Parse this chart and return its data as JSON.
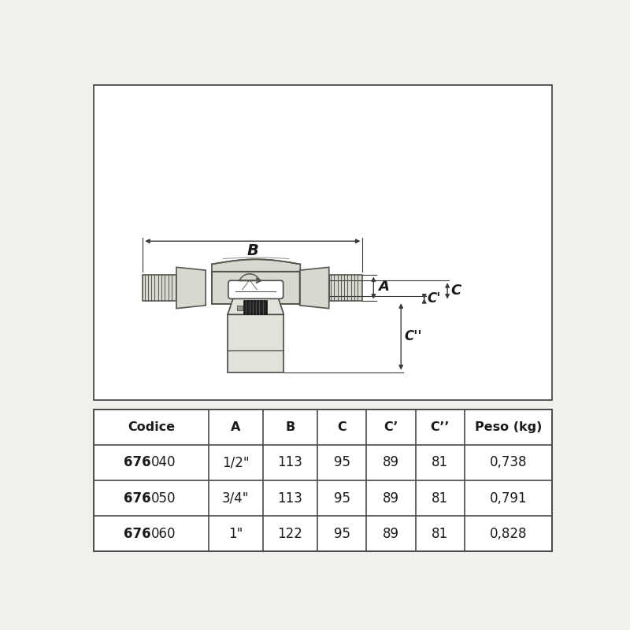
{
  "bg_color": "#f0f0ec",
  "line_color": "#4a4a4a",
  "dim_color": "#3a3a3a",
  "valve_fill": "#d8d8d0",
  "valve_edge": "#555550",
  "black_fill": "#222222",
  "actuator_fill": "#e2e2da",
  "white_fill": "#ffffff",
  "text_color": "#1a1a1a",
  "table_headers": [
    "Codice",
    "A",
    "B",
    "C",
    "C’",
    "C’’",
    "Peso (kg)"
  ],
  "table_rows": [
    [
      "676040",
      "1/2\"",
      "113",
      "95",
      "89",
      "81",
      "0,738"
    ],
    [
      "676050",
      "3/4\"",
      "113",
      "95",
      "89",
      "81",
      "0,791"
    ],
    [
      "676060",
      "1\"",
      "122",
      "95",
      "89",
      "81",
      "0,828"
    ]
  ],
  "table_bold_prefix": "676"
}
